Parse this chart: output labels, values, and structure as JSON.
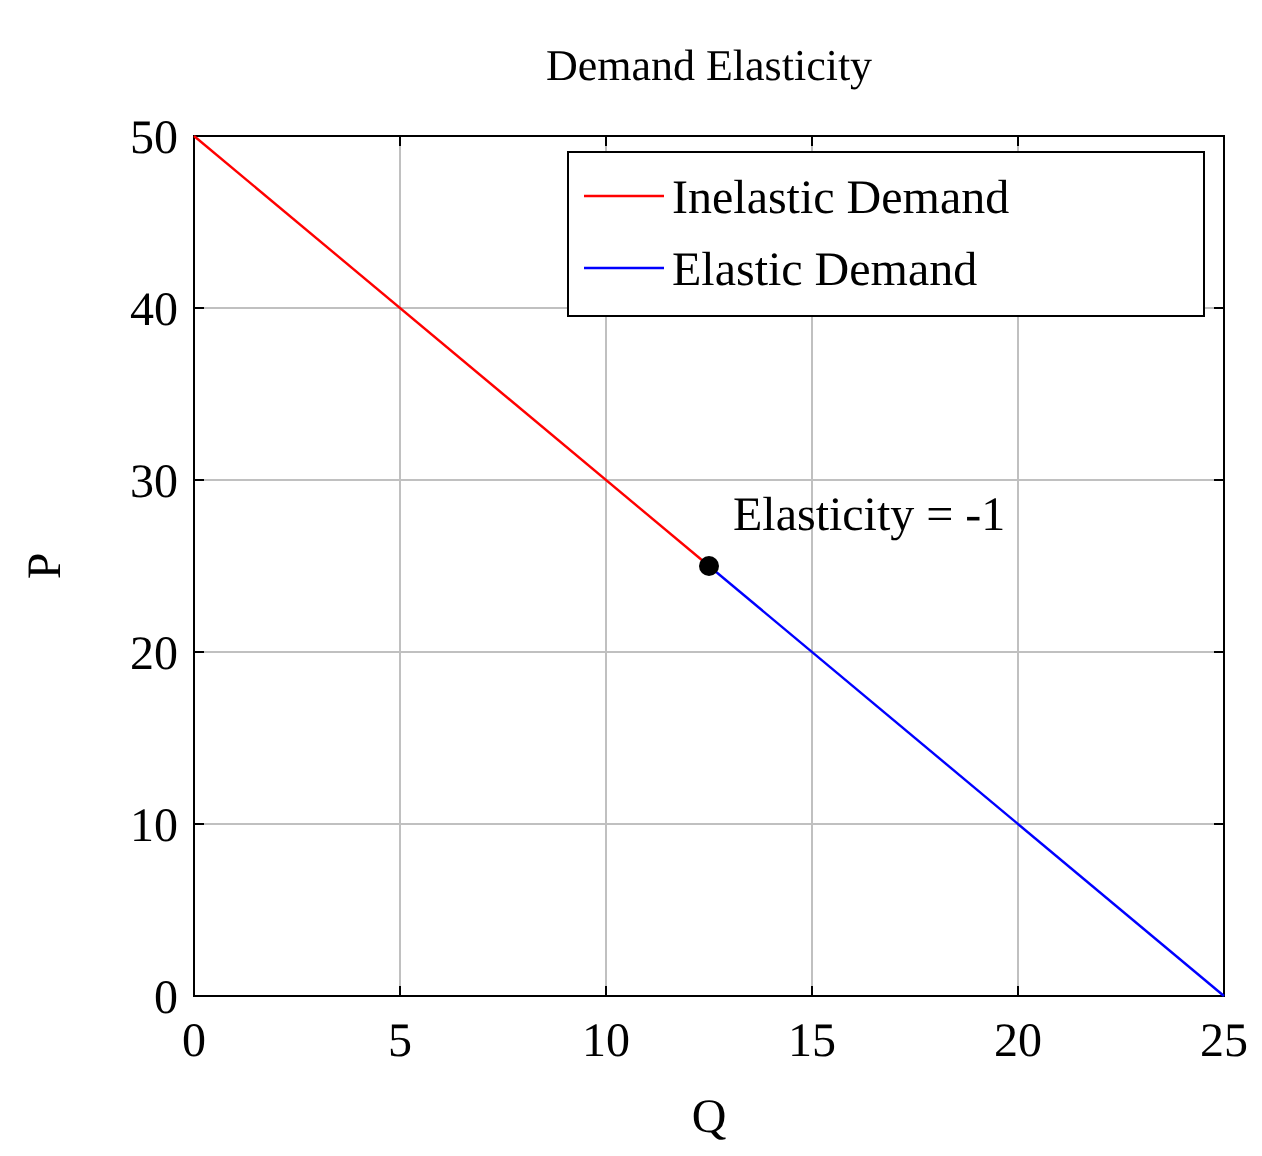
{
  "chart_data": {
    "type": "line",
    "title": "Demand Elasticity",
    "xlabel": "Q",
    "ylabel": "P",
    "xlim": [
      0,
      25
    ],
    "ylim": [
      0,
      50
    ],
    "xticks": [
      0,
      5,
      10,
      15,
      20,
      25
    ],
    "yticks": [
      0,
      10,
      20,
      30,
      40,
      50
    ],
    "grid": true,
    "legend": "top right",
    "series": [
      {
        "name": "Inelastic Demand",
        "color": "#ff0000",
        "x": [
          0,
          12.5
        ],
        "values": [
          50,
          25
        ]
      },
      {
        "name": "Elastic Demand",
        "color": "#0000ff",
        "x": [
          12.5,
          25
        ],
        "values": [
          25,
          0
        ]
      },
      {
        "type": "scatter",
        "color": "#000000",
        "x": [
          12.5
        ],
        "values": [
          25
        ],
        "marker": "circle"
      }
    ],
    "annotations": [
      {
        "text": "Elasticity = -1",
        "x": 12.5,
        "y": 25
      }
    ]
  }
}
